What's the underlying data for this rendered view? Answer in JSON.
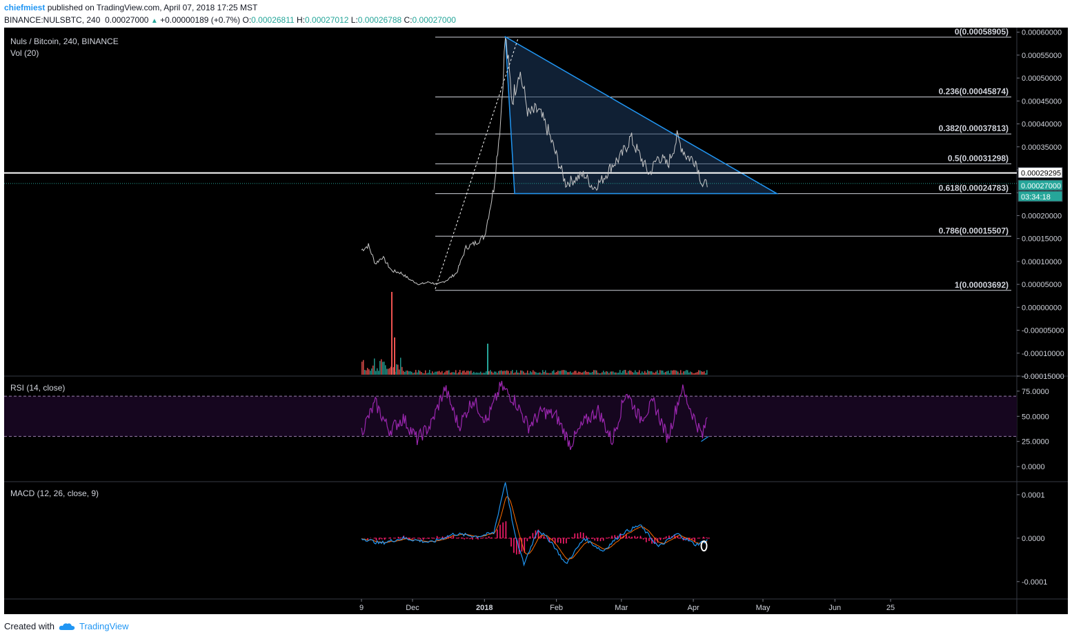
{
  "header": {
    "author": "chiefmiest",
    "published": "published on TradingView.com, April 07, 2018 17:25 MST",
    "symbol": "BINANCE:NULSBTC, 240",
    "last": "0.00027000",
    "change": "+0.00000189 (+0.7%)",
    "o_label": "O:",
    "o": "0.00026811",
    "h_label": "H:",
    "h": "0.00027012",
    "l_label": "L:",
    "l": "0.00026788",
    "c_label": "C:",
    "c": "0.00027000"
  },
  "panes": {
    "main_title": "Nuls / Bitcoin, 240, BINANCE",
    "vol_title": "Vol (20)",
    "rsi_title": "RSI (14, close)",
    "macd_title": "MACD (12, 26, close, 9)"
  },
  "badges": {
    "line_price": "0.00029295",
    "last_price": "0.00027000",
    "countdown": "03:34:18"
  },
  "footer": {
    "created_with": "Created with",
    "brand": "TradingView"
  },
  "colors": {
    "background": "#000000",
    "fib": "#d1d4dc",
    "triangle": "#2196f3",
    "triangle_fill": "#1e3a5f",
    "rsi": "#9c27b0",
    "rsi_band": "#16061f",
    "macd": "#2196f3",
    "signal": "#ff6d00",
    "hist": "#ff1e6e",
    "up": "#26a69a",
    "down": "#ef5350",
    "badge": "#26a69a"
  },
  "chart_data": [
    {
      "type": "line",
      "title": "Nuls / Bitcoin, 240, BINANCE",
      "x_ticks": [
        "9",
        "Dec",
        "2018",
        "Feb",
        "Mar",
        "Apr",
        "May",
        "Jun",
        "25"
      ],
      "y_ticks": [
        "0.00060000",
        "0.00055000",
        "0.00050000",
        "0.00045000",
        "0.00040000",
        "0.00035000",
        "0.00030000",
        "0.00025000",
        "0.00020000",
        "0.00015000",
        "0.00010000",
        "0.00005000",
        "0.00000000",
        "-0.00005000",
        "-0.00010000",
        "-0.00015000"
      ],
      "ylim": [
        -0.00015,
        0.00061
      ],
      "series": [
        {
          "x": [
            "2017-11-09",
            "2017-11-12",
            "2017-11-15",
            "2017-11-18",
            "2017-11-22",
            "2017-11-26",
            "2017-11-30",
            "2017-12-04",
            "2017-12-08",
            "2017-12-12",
            "2017-12-16",
            "2017-12-20",
            "2017-12-24",
            "2017-12-28",
            "2018-01-01",
            "2018-01-05",
            "2018-01-08",
            "2018-01-10",
            "2018-01-13",
            "2018-01-16",
            "2018-01-20",
            "2018-01-24",
            "2018-01-28",
            "2018-02-01",
            "2018-02-05",
            "2018-02-09",
            "2018-02-13",
            "2018-02-17",
            "2018-02-21",
            "2018-02-25",
            "2018-03-01",
            "2018-03-05",
            "2018-03-09",
            "2018-03-13",
            "2018-03-17",
            "2018-03-21",
            "2018-03-25",
            "2018-03-29",
            "2018-04-02",
            "2018-04-05",
            "2018-04-07"
          ],
          "y": [
            0.000125,
            0.000135,
            9.5e-05,
            0.00011,
            8e-05,
            7.5e-05,
            6e-05,
            5e-05,
            5.5e-05,
            5e-05,
            6e-05,
            7.5e-05,
            0.00013,
            0.00014,
            0.000155,
            0.00026,
            0.00041,
            0.00059,
            0.00045,
            0.00052,
            0.00042,
            0.00043,
            0.00039,
            0.00033,
            0.00027,
            0.00028,
            0.00029,
            0.00026,
            0.00028,
            0.00031,
            0.00033,
            0.00037,
            0.00033,
            0.00029,
            0.00033,
            0.00031,
            0.00037,
            0.00033,
            0.00032,
            0.000265,
            0.00027
          ]
        }
      ],
      "fib_levels": [
        {
          "label": "0(0.00058905)",
          "value": 0.00058905
        },
        {
          "label": "0.236(0.00045874)",
          "value": 0.00045874
        },
        {
          "label": "0.382(0.00037813)",
          "value": 0.00037813
        },
        {
          "label": "0.5(0.00031298)",
          "value": 0.00031298
        },
        {
          "label": "0.618(0.00024783)",
          "value": 0.00024783
        },
        {
          "label": "0.786(0.00015507)",
          "value": 0.00015507
        },
        {
          "label": "1(0.00003692)",
          "value": 3.692e-05
        }
      ],
      "triangle": [
        [
          "2018-01-10",
          0.00059
        ],
        [
          "2018-01-14",
          0.000248
        ],
        [
          "2018-05-07",
          0.000248
        ]
      ],
      "horizontal_line": 0.00029295,
      "last_value": 0.00027
    },
    {
      "type": "line",
      "title": "RSI (14, close)",
      "y_ticks": [
        "75.0000",
        "50.0000",
        "25.0000",
        "0.0000"
      ],
      "ylim": [
        -15,
        90
      ],
      "bands": [
        30,
        70
      ],
      "series": [
        {
          "x": [
            "2017-11-09",
            "2017-11-15",
            "2017-11-21",
            "2017-11-27",
            "2017-12-03",
            "2017-12-09",
            "2017-12-15",
            "2017-12-21",
            "2017-12-27",
            "2018-01-02",
            "2018-01-08",
            "2018-01-14",
            "2018-01-20",
            "2018-01-26",
            "2018-02-01",
            "2018-02-07",
            "2018-02-13",
            "2018-02-19",
            "2018-02-25",
            "2018-03-03",
            "2018-03-09",
            "2018-03-15",
            "2018-03-21",
            "2018-03-27",
            "2018-04-02",
            "2018-04-05",
            "2018-04-07"
          ],
          "y": [
            35,
            63,
            36,
            48,
            27,
            42,
            78,
            40,
            67,
            45,
            80,
            66,
            40,
            55,
            50,
            22,
            44,
            56,
            25,
            75,
            48,
            63,
            28,
            78,
            45,
            30,
            50
          ]
        }
      ]
    },
    {
      "type": "line",
      "title": "MACD (12, 26, close, 9)",
      "y_ticks": [
        "0.0001",
        "0.0000",
        "-0.0001"
      ],
      "ylim": [
        -0.00014,
        0.00013
      ],
      "series": [
        {
          "name": "MACD",
          "x": [
            "2017-11-09",
            "2017-11-17",
            "2017-11-27",
            "2017-12-09",
            "2017-12-19",
            "2017-12-29",
            "2018-01-05",
            "2018-01-10",
            "2018-01-14",
            "2018-01-18",
            "2018-01-24",
            "2018-01-30",
            "2018-02-05",
            "2018-02-13",
            "2018-02-21",
            "2018-03-01",
            "2018-03-09",
            "2018-03-17",
            "2018-03-25",
            "2018-04-02",
            "2018-04-07"
          ],
          "y": [
            0.0,
            -1.2e-05,
            0.0,
            -1e-05,
            1e-05,
            4e-06,
            1.2e-05,
            0.00013,
            1e-05,
            -6e-05,
            2e-05,
            -1e-05,
            -6e-05,
            0.0,
            -3e-05,
            1e-05,
            3e-05,
            -2e-05,
            1e-05,
            -1.5e-05,
            -5e-06
          ]
        }
      ]
    }
  ]
}
